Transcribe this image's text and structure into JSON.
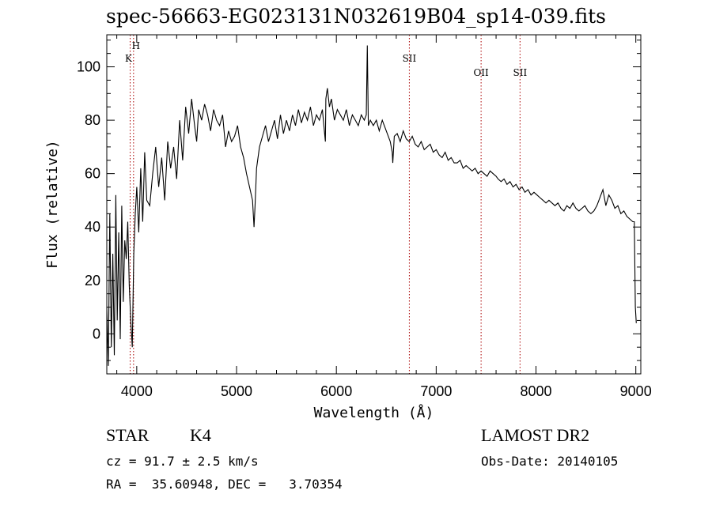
{
  "chart_data": {
    "type": "line",
    "title": "spec-56663-EG023131N032619B04_sp14-039.fits",
    "xlabel": "Wavelength (Å)",
    "ylabel": "Flux (relative)",
    "xlim": [
      3700,
      9050
    ],
    "ylim": [
      -15,
      112
    ],
    "xticks": [
      4000,
      5000,
      6000,
      7000,
      8000,
      9000
    ],
    "yticks": [
      0,
      20,
      40,
      60,
      80,
      100
    ],
    "grid": false,
    "line_color": "#000000",
    "marker_color": "#aa0000",
    "series": [
      {
        "x": [
          3700,
          3715,
          3730,
          3745,
          3760,
          3775,
          3790,
          3805,
          3820,
          3835,
          3850,
          3865,
          3880,
          3895,
          3910,
          3925,
          3940,
          3955,
          3970,
          3985,
          4000,
          4020,
          4040,
          4060,
          4080,
          4100,
          4130,
          4160,
          4190,
          4220,
          4250,
          4280,
          4310,
          4340,
          4370,
          4400,
          4430,
          4460,
          4490,
          4520,
          4550,
          4580,
          4600,
          4620,
          4650,
          4680,
          4710,
          4740,
          4770,
          4800,
          4830,
          4860,
          4890,
          4920,
          4950,
          4980,
          5010,
          5040,
          5070,
          5100,
          5130,
          5160,
          5175,
          5185,
          5200,
          5230,
          5260,
          5290,
          5320,
          5350,
          5380,
          5410,
          5440,
          5470,
          5500,
          5530,
          5560,
          5590,
          5620,
          5650,
          5680,
          5710,
          5740,
          5770,
          5800,
          5830,
          5860,
          5880,
          5890,
          5895,
          5910,
          5930,
          5950,
          5980,
          6010,
          6040,
          6070,
          6100,
          6130,
          6160,
          6190,
          6220,
          6250,
          6280,
          6300,
          6310,
          6320,
          6340,
          6370,
          6400,
          6430,
          6460,
          6490,
          6520,
          6540,
          6560,
          6565,
          6580,
          6610,
          6640,
          6670,
          6700,
          6730,
          6760,
          6790,
          6820,
          6850,
          6880,
          6910,
          6940,
          6970,
          7000,
          7030,
          7060,
          7090,
          7120,
          7150,
          7180,
          7210,
          7240,
          7270,
          7300,
          7330,
          7360,
          7390,
          7420,
          7450,
          7480,
          7510,
          7540,
          7570,
          7600,
          7620,
          7650,
          7680,
          7710,
          7740,
          7770,
          7800,
          7830,
          7860,
          7890,
          7920,
          7950,
          7980,
          8010,
          8040,
          8070,
          8100,
          8130,
          8160,
          8190,
          8220,
          8250,
          8280,
          8310,
          8340,
          8370,
          8400,
          8430,
          8460,
          8490,
          8520,
          8550,
          8580,
          8610,
          8640,
          8670,
          8700,
          8730,
          8760,
          8790,
          8820,
          8850,
          8880,
          8910,
          8940,
          8970,
          8985,
          8995,
          9005
        ],
        "y": [
          10,
          -12,
          45,
          -5,
          30,
          -8,
          52,
          5,
          38,
          -2,
          48,
          12,
          35,
          28,
          42,
          18,
          5,
          -5,
          30,
          45,
          55,
          38,
          62,
          42,
          68,
          50,
          48,
          60,
          70,
          55,
          66,
          50,
          72,
          62,
          70,
          58,
          80,
          65,
          85,
          75,
          88,
          78,
          72,
          84,
          80,
          86,
          82,
          76,
          84,
          80,
          78,
          82,
          70,
          76,
          72,
          74,
          78,
          70,
          66,
          60,
          55,
          50,
          40,
          48,
          62,
          70,
          74,
          78,
          72,
          76,
          80,
          73,
          82,
          75,
          80,
          76,
          82,
          78,
          84,
          79,
          83,
          80,
          85,
          78,
          82,
          80,
          84,
          76,
          72,
          88,
          92,
          85,
          88,
          80,
          84,
          82,
          80,
          84,
          78,
          82,
          80,
          78,
          82,
          80,
          82,
          108,
          78,
          80,
          78,
          80,
          76,
          80,
          77,
          74,
          72,
          68,
          64,
          74,
          75,
          72,
          76,
          73,
          72,
          74,
          71,
          70,
          72,
          69,
          70,
          71,
          68,
          69,
          67,
          66,
          68,
          65,
          66,
          64,
          64,
          65,
          62,
          63,
          62,
          61,
          62,
          60,
          61,
          60,
          59,
          61,
          60,
          59,
          58,
          57,
          58,
          56,
          57,
          55,
          56,
          54,
          55,
          53,
          54,
          52,
          53,
          52,
          51,
          50,
          49,
          50,
          49,
          48,
          49,
          47,
          46,
          48,
          47,
          49,
          47,
          46,
          47,
          48,
          46,
          45,
          46,
          48,
          51,
          54,
          48,
          52,
          50,
          47,
          48,
          45,
          46,
          44,
          43,
          42,
          42,
          10,
          4
        ]
      }
    ],
    "lines": [
      {
        "label": "H",
        "x": 3968
      },
      {
        "label": "K",
        "x": 3934
      },
      {
        "label": "SII",
        "x": 6731
      },
      {
        "label": "OII",
        "x": 7450
      },
      {
        "label": "SII",
        "x": 7840
      }
    ]
  },
  "info": {
    "class": "STAR",
    "subclass": "K4",
    "survey": "LAMOST DR2",
    "cz": "cz = 91.7 ± 2.5 km/s",
    "obs_date": "Obs-Date: 20140105",
    "radec": "RA =  35.60948, DEC =   3.70354"
  }
}
